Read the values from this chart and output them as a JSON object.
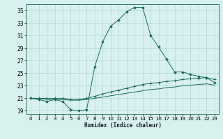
{
  "xlabel": "Humidex (Indice chaleur)",
  "bg_color": "#d8f0ee",
  "grid_color": "#b0d8d5",
  "line_color": "#1a6b5a",
  "xlim": [
    -0.5,
    23.5
  ],
  "ylim": [
    18.5,
    36.0
  ],
  "yticks": [
    19,
    21,
    23,
    25,
    27,
    29,
    31,
    33,
    35
  ],
  "xticks": [
    0,
    1,
    2,
    3,
    4,
    5,
    6,
    7,
    8,
    9,
    10,
    11,
    12,
    13,
    14,
    15,
    16,
    17,
    18,
    19,
    20,
    21,
    22,
    23
  ],
  "line1_x": [
    0,
    1,
    2,
    3,
    4,
    5,
    6,
    7,
    8,
    9,
    10,
    11,
    12,
    13,
    14,
    15,
    16,
    17,
    18,
    19,
    20,
    21,
    22,
    23
  ],
  "line1_y": [
    21.0,
    20.8,
    20.5,
    20.8,
    20.5,
    19.2,
    19.0,
    19.2,
    26.0,
    30.0,
    32.5,
    33.5,
    34.8,
    35.5,
    35.5,
    31.0,
    29.2,
    27.2,
    25.2,
    25.2,
    24.8,
    24.5,
    24.3,
    23.5
  ],
  "line2_x": [
    0,
    1,
    2,
    3,
    4,
    5,
    6,
    7,
    8,
    9,
    10,
    11,
    12,
    13,
    14,
    15,
    16,
    17,
    18,
    19,
    20,
    21,
    22,
    23
  ],
  "line2_y": [
    21.0,
    21.0,
    21.0,
    21.0,
    21.0,
    20.8,
    20.8,
    21.0,
    21.3,
    21.7,
    22.0,
    22.3,
    22.6,
    22.9,
    23.2,
    23.4,
    23.5,
    23.7,
    23.8,
    24.0,
    24.1,
    24.2,
    24.3,
    24.0
  ],
  "line3_x": [
    0,
    1,
    2,
    3,
    4,
    5,
    6,
    7,
    8,
    9,
    10,
    11,
    12,
    13,
    14,
    15,
    16,
    17,
    18,
    19,
    20,
    21,
    22,
    23
  ],
  "line3_y": [
    21.0,
    21.0,
    20.8,
    20.8,
    20.8,
    20.7,
    20.7,
    20.8,
    21.0,
    21.2,
    21.4,
    21.6,
    21.8,
    22.0,
    22.2,
    22.4,
    22.5,
    22.7,
    22.8,
    23.0,
    23.1,
    23.2,
    23.3,
    23.1
  ]
}
